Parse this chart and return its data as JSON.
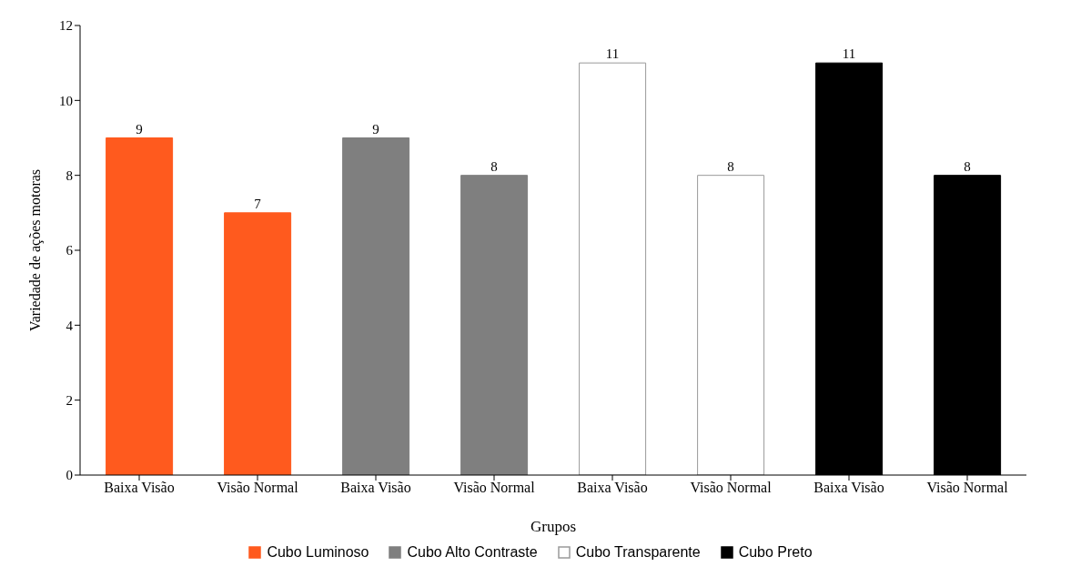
{
  "chart_data": {
    "type": "bar",
    "xlabel": "Grupos",
    "ylabel": "Variedade de ações motoras",
    "categories": [
      "Baixa Visão",
      "Visão Normal",
      "Baixa Visão",
      "Visão Normal",
      "Baixa Visão",
      "Visão Normal",
      "Baixa Visão",
      "Visão Normal"
    ],
    "series": [
      {
        "name": "Cubo Luminoso",
        "color": "#ff5a1e",
        "values": [
          9,
          7,
          null,
          null,
          null,
          null,
          null,
          null
        ]
      },
      {
        "name": "Cubo Alto Contraste",
        "color": "#7f7f7f",
        "values": [
          null,
          null,
          9,
          8,
          null,
          null,
          null,
          null
        ]
      },
      {
        "name": "Cubo Transparente",
        "color": "#ffffff",
        "values": [
          null,
          null,
          null,
          null,
          11,
          8,
          null,
          null
        ]
      },
      {
        "name": "Cubo Preto",
        "color": "#000000",
        "values": [
          null,
          null,
          null,
          null,
          null,
          null,
          11,
          8
        ]
      }
    ],
    "ylim": [
      0,
      12
    ],
    "yticks": [
      0,
      2,
      4,
      6,
      8,
      10,
      12
    ],
    "grid": false,
    "legend": "bottom",
    "data_labels": true
  }
}
